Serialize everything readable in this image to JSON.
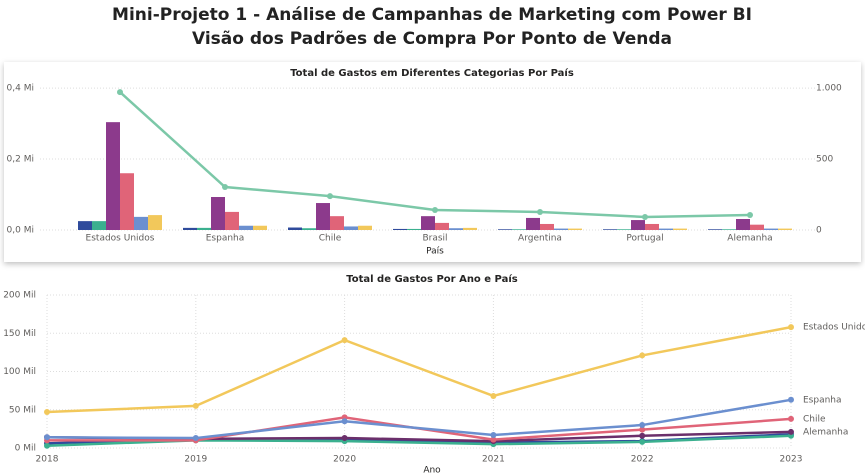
{
  "header": {
    "title": "Mini-Projeto 1 - Análise de Campanhas de Marketing com Power BI",
    "subtitle": "Visão dos Padrões de Compra Por Ponto de Venda"
  },
  "chart_data": [
    {
      "type": "bar",
      "title": "Total de Gastos em Diferentes Categorias Por País",
      "x_label": "País",
      "categories": [
        "Estados Unidos",
        "Espanha",
        "Chile",
        "Brasil",
        "Argentina",
        "Portugal",
        "Alemanha"
      ],
      "ylim": [
        0,
        0.42
      ],
      "yticks": [
        {
          "value": 0,
          "label": "0,0 Mi"
        },
        {
          "value": 0.2,
          "label": "0,2 Mi"
        },
        {
          "value": 0.4,
          "label": "0,4 Mi"
        }
      ],
      "y2lim": [
        0,
        1050
      ],
      "y2ticks": [
        0,
        500,
        {
          "value": 1000,
          "label": "1.000"
        }
      ],
      "series": [
        {
          "color": "#2f4b9c",
          "values": [
            0.025,
            0.006,
            0.007,
            0.003,
            0.002,
            0.002,
            0.002
          ]
        },
        {
          "color": "#3bb08f",
          "values": [
            0.025,
            0.006,
            0.005,
            0.003,
            0.002,
            0.002,
            0.002
          ]
        },
        {
          "color": "#8c3a8c",
          "values": [
            0.304,
            0.093,
            0.076,
            0.039,
            0.034,
            0.028,
            0.031
          ]
        },
        {
          "color": "#e06478",
          "values": [
            0.16,
            0.051,
            0.039,
            0.02,
            0.017,
            0.017,
            0.015
          ]
        },
        {
          "color": "#6b8fcf",
          "values": [
            0.037,
            0.012,
            0.01,
            0.005,
            0.004,
            0.004,
            0.004
          ]
        },
        {
          "color": "#f2c85b",
          "values": [
            0.042,
            0.012,
            0.012,
            0.006,
            0.004,
            0.004,
            0.004
          ]
        },
        {
          "type": "line",
          "axis": "y2",
          "color": "#7cc8a8",
          "values": [
            972,
            303,
            239,
            141,
            127,
            92,
            106
          ]
        }
      ]
    },
    {
      "type": "line",
      "title": "Total de Gastos Por Ano e País",
      "x_label": "Ano",
      "categories": [
        "2018",
        "2019",
        "2020",
        "2021",
        "2022",
        "2023"
      ],
      "ylim": [
        0,
        200
      ],
      "yticks": [
        {
          "value": 0,
          "label": "0 Mil"
        },
        {
          "value": 50,
          "label": "50 Mil"
        },
        {
          "value": 100,
          "label": "100 Mil"
        },
        {
          "value": 150,
          "label": "150 Mil"
        },
        {
          "value": 200,
          "label": "200 Mil"
        }
      ],
      "grid": true,
      "series": [
        {
          "color": "#2f4b9c",
          "values": [
            6,
            12,
            11,
            7,
            9,
            18
          ]
        },
        {
          "color": "#3bb08f",
          "values": [
            3,
            10,
            9,
            5,
            8,
            16
          ]
        },
        {
          "name": "Alemanha",
          "color": "#6b2f6b",
          "values": [
            14,
            12,
            13,
            9,
            16,
            21
          ]
        },
        {
          "name": "Chile",
          "color": "#e06478",
          "values": [
            10,
            10,
            40,
            11,
            24,
            38
          ]
        },
        {
          "name": "Espanha",
          "color": "#6b8fcf",
          "values": [
            14,
            13,
            35,
            17,
            30,
            63
          ]
        },
        {
          "name": "Estados Unidos",
          "color": "#f2c85b",
          "values": [
            47,
            55,
            141,
            68,
            121,
            158
          ]
        }
      ]
    }
  ]
}
